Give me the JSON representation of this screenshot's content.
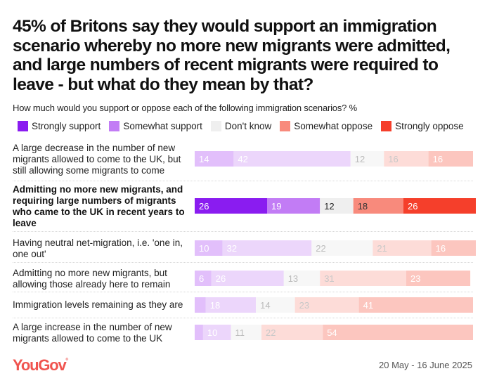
{
  "header": {
    "title": "45% of Britons say they would support an immigration scenario whereby no more new migrants were admitted, and large numbers of recent migrants were required to leave - but what do they mean by that?",
    "subtitle": "How much would you support or oppose each of the following immigration scenarios? %"
  },
  "footer": {
    "brand": "YouGov",
    "date_range": "20 May - 16 June 2025"
  },
  "colors": {
    "strongly_support": "#8a1cf0",
    "somewhat_support": "#c27cf5",
    "dont_know": "#efefef",
    "somewhat_oppose": "#f88a7c",
    "strongly_oppose": "#f53f2b"
  },
  "chart_data": {
    "type": "bar",
    "orientation": "horizontal",
    "stacked": true,
    "title": "45% of Britons say they would support an immigration scenario whereby no more new migrants were admitted, and large numbers of recent migrants were required to leave - but what do they mean by that?",
    "subtitle": "How much would you support or oppose each of the following immigration scenarios? %",
    "legend": [
      "Strongly support",
      "Somewhat support",
      "Don't know",
      "Somewhat oppose",
      "Strongly oppose"
    ],
    "legend_position": "top-left",
    "categories": [
      "A large decrease in the number of new migrants allowed to come to the UK, but still allowing some migrants to come",
      "Admitting no more new migrants, and requiring large numbers of migrants who came to the UK in recent years to leave",
      "Having neutral net-migration, i.e. 'one in, one out'",
      "Admitting no more new migrants, but allowing those already here to remain",
      "Immigration levels remaining as they are",
      "A large increase in the number of new migrants allowed to come to the UK"
    ],
    "highlighted_category_index": 1,
    "series": [
      {
        "name": "Strongly support",
        "values": [
          14,
          26,
          10,
          6,
          4,
          3
        ],
        "labels": [
          "14",
          "26",
          "10",
          "6",
          "",
          ""
        ]
      },
      {
        "name": "Somewhat support",
        "values": [
          42,
          19,
          32,
          26,
          18,
          10
        ],
        "labels": [
          "42",
          "19",
          "32",
          "26",
          "18",
          "10"
        ]
      },
      {
        "name": "Don't know",
        "values": [
          12,
          12,
          22,
          13,
          14,
          11
        ],
        "labels": [
          "12",
          "12",
          "22",
          "13",
          "14",
          "11"
        ]
      },
      {
        "name": "Somewhat oppose",
        "values": [
          16,
          18,
          21,
          31,
          23,
          22
        ],
        "labels": [
          "16",
          "18",
          "21",
          "31",
          "23",
          "22"
        ]
      },
      {
        "name": "Strongly oppose",
        "values": [
          16,
          26,
          16,
          23,
          41,
          54
        ],
        "labels": [
          "16",
          "26",
          "16",
          "23",
          "41",
          "54"
        ]
      }
    ],
    "xlim": [
      0,
      100
    ],
    "grid": false,
    "source": "YouGov",
    "date_range": "20 May - 16 June 2025"
  }
}
